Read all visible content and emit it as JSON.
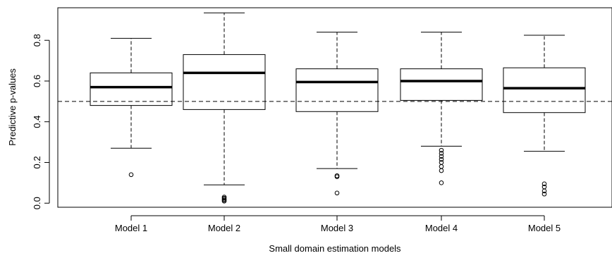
{
  "chart_data": {
    "type": "boxplot",
    "xlabel": "Small domain estimation models",
    "ylabel": "Predictive p-values",
    "categories": [
      "Model 1",
      "Model 2",
      "Model 3",
      "Model 4",
      "Model 5"
    ],
    "yticks": [
      "0.0",
      "0.2",
      "0.4",
      "0.6",
      "0.8"
    ],
    "ylim": [
      -0.02,
      0.96
    ],
    "reference_line": 0.5,
    "boxes": [
      {
        "name": "Model 1",
        "whisker_low": 0.27,
        "q1": 0.48,
        "median": 0.57,
        "q3": 0.64,
        "whisker_high": 0.81,
        "outliers": [
          0.14
        ]
      },
      {
        "name": "Model 2",
        "whisker_low": 0.09,
        "q1": 0.46,
        "median": 0.64,
        "q3": 0.73,
        "whisker_high": 0.935,
        "outliers": [
          0.01,
          0.015,
          0.02,
          0.025,
          0.03
        ]
      },
      {
        "name": "Model 3",
        "whisker_low": 0.17,
        "q1": 0.45,
        "median": 0.595,
        "q3": 0.66,
        "whisker_high": 0.84,
        "outliers": [
          0.05,
          0.13,
          0.135
        ]
      },
      {
        "name": "Model 4",
        "whisker_low": 0.28,
        "q1": 0.505,
        "median": 0.6,
        "q3": 0.66,
        "whisker_high": 0.84,
        "outliers": [
          0.1,
          0.16,
          0.18,
          0.2,
          0.215,
          0.23,
          0.245,
          0.26
        ]
      },
      {
        "name": "Model 5",
        "whisker_low": 0.255,
        "q1": 0.445,
        "median": 0.565,
        "q3": 0.665,
        "whisker_high": 0.825,
        "outliers": [
          0.045,
          0.06,
          0.08,
          0.095
        ]
      }
    ],
    "grid": false,
    "legend": "none"
  }
}
